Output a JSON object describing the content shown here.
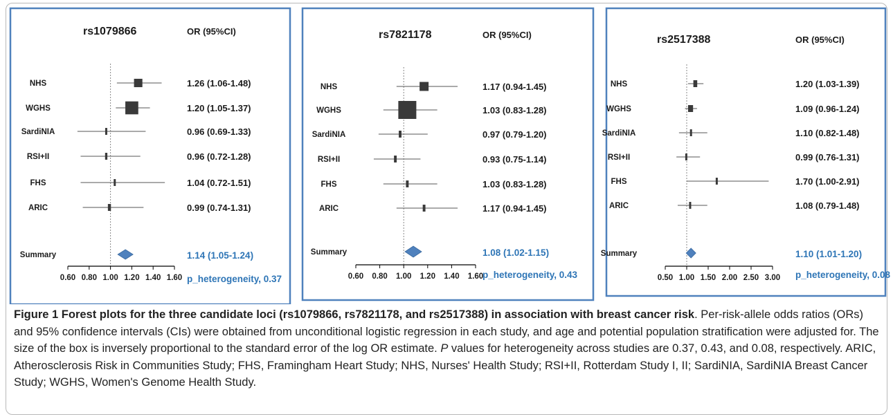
{
  "chart_data": [
    {
      "type": "forest",
      "snp": "rs1079866",
      "or_header": "OR (95%CI)",
      "xticks": [
        "0.60",
        "0.80",
        "1.00",
        "1.20",
        "1.40",
        "1.60"
      ],
      "xlim": [
        0.6,
        1.6
      ],
      "reference": 1.0,
      "studies": [
        {
          "name": "NHS",
          "or": 1.26,
          "lo": 1.06,
          "hi": 1.48,
          "label": "1.26 (1.06-1.48)",
          "weight": 0.55
        },
        {
          "name": "WGHS",
          "or": 1.2,
          "lo": 1.05,
          "hi": 1.37,
          "label": "1.20 (1.05-1.37)",
          "weight": 0.85
        },
        {
          "name": "SardiNIA",
          "or": 0.96,
          "lo": 0.69,
          "hi": 1.33,
          "label": "0.96 (0.69-1.33)",
          "weight": 0.12
        },
        {
          "name": "RSI+II",
          "or": 0.96,
          "lo": 0.72,
          "hi": 1.28,
          "label": "0.96 (0.72-1.28)",
          "weight": 0.15
        },
        {
          "name": "FHS",
          "or": 1.04,
          "lo": 0.72,
          "hi": 1.51,
          "label": "1.04 (0.72-1.51)",
          "weight": 0.12
        },
        {
          "name": "ARIC",
          "or": 0.99,
          "lo": 0.74,
          "hi": 1.31,
          "label": "0.99 (0.74-1.31)",
          "weight": 0.2
        }
      ],
      "summary": {
        "name": "Summary",
        "or": 1.14,
        "lo": 1.05,
        "hi": 1.24,
        "label": "1.14 (1.05-1.24)"
      },
      "p_heterogeneity": "p_heterogeneity, 0.37"
    },
    {
      "type": "forest",
      "snp": "rs7821178",
      "or_header": "OR (95%CI)",
      "xticks": [
        "0.60",
        "0.80",
        "1.00",
        "1.20",
        "1.40",
        "1.60"
      ],
      "xlim": [
        0.6,
        1.6
      ],
      "reference": 1.0,
      "studies": [
        {
          "name": "NHS",
          "or": 1.17,
          "lo": 0.94,
          "hi": 1.45,
          "label": "1.17 (0.94-1.45)",
          "weight": 0.5
        },
        {
          "name": "WGHS",
          "or": 1.03,
          "lo": 0.83,
          "hi": 1.28,
          "label": "1.03 (0.83-1.28)",
          "weight": 1.0
        },
        {
          "name": "SardiNIA",
          "or": 0.97,
          "lo": 0.79,
          "hi": 1.2,
          "label": "0.97 (0.79-1.20)",
          "weight": 0.15
        },
        {
          "name": "RSI+II",
          "or": 0.93,
          "lo": 0.75,
          "hi": 1.14,
          "label": "0.93 (0.75-1.14)",
          "weight": 0.15
        },
        {
          "name": "FHS",
          "or": 1.03,
          "lo": 0.83,
          "hi": 1.28,
          "label": "1.03 (0.83-1.28)",
          "weight": 0.15
        },
        {
          "name": "ARIC",
          "or": 1.17,
          "lo": 0.94,
          "hi": 1.45,
          "label": "1.17 (0.94-1.45)",
          "weight": 0.15
        }
      ],
      "summary": {
        "name": "Summary",
        "or": 1.08,
        "lo": 1.02,
        "hi": 1.15,
        "label": "1.08 (1.02-1.15)"
      },
      "p_heterogeneity": "p_heterogeneity, 0.43"
    },
    {
      "type": "forest",
      "snp": "rs2517388",
      "or_header": "OR (95%CI)",
      "xticks": [
        "0.50",
        "1.00",
        "1.50",
        "2.00",
        "2.50",
        "3.00"
      ],
      "xlim": [
        0.5,
        3.0
      ],
      "reference": 1.0,
      "studies": [
        {
          "name": "NHS",
          "or": 1.2,
          "lo": 1.03,
          "hi": 1.39,
          "label": "1.20 (1.03-1.39)",
          "weight": 0.35
        },
        {
          "name": "WGHS",
          "or": 1.09,
          "lo": 0.96,
          "hi": 1.24,
          "label": "1.09 (0.96-1.24)",
          "weight": 0.45
        },
        {
          "name": "SardiNIA",
          "or": 1.1,
          "lo": 0.82,
          "hi": 1.48,
          "label": "1.10 (0.82-1.48)",
          "weight": 0.08
        },
        {
          "name": "RSI+II",
          "or": 0.99,
          "lo": 0.76,
          "hi": 1.31,
          "label": "0.99 (0.76-1.31)",
          "weight": 0.08
        },
        {
          "name": "FHS",
          "or": 1.7,
          "lo": 1.0,
          "hi": 2.91,
          "label": "1.70 (1.00-2.91)",
          "weight": 0.05
        },
        {
          "name": "ARIC",
          "or": 1.08,
          "lo": 0.79,
          "hi": 1.48,
          "label": "1.08 (0.79-1.48)",
          "weight": 0.08
        }
      ],
      "summary": {
        "name": "Summary",
        "or": 1.1,
        "lo": 1.01,
        "hi": 1.2,
        "label": "1.10 (1.01-1.20)"
      },
      "p_heterogeneity": "p_heterogeneity, 0.08"
    }
  ],
  "colors": {
    "panel_border": "#4f81bd",
    "summary_fill": "#4f81bd",
    "summary_text": "#2e75b6",
    "box_fill": "#3a3a3a",
    "whisker": "#555555",
    "reference_line": "#888888"
  },
  "caption": {
    "label": "Figure 1",
    "title": "Forest plots for the three candidate loci (rs1079866, rs7821178, and rs2517388) in association with breast cancer risk",
    "text_before_p": ". Per-risk-allele odds ratios (ORs) and 95% confidence intervals (CIs) were obtained from unconditional logistic regression in each study, and age and potential population stratification were adjusted for. The size of the box is inversely proportional to the standard error of the log OR estimate. ",
    "p_symbol": "P",
    "text_after_p": " values for heterogeneity across studies are 0.37, 0.43, and 0.08, respectively. ARIC, Atherosclerosis Risk in Communities Study; FHS, Framingham Heart Study; NHS, Nurses' Health Study; RSI+II, Rotterdam Study I, II; SardiNIA, SardiNIA Breast Cancer Study; WGHS, Women's Genome Health Study."
  }
}
